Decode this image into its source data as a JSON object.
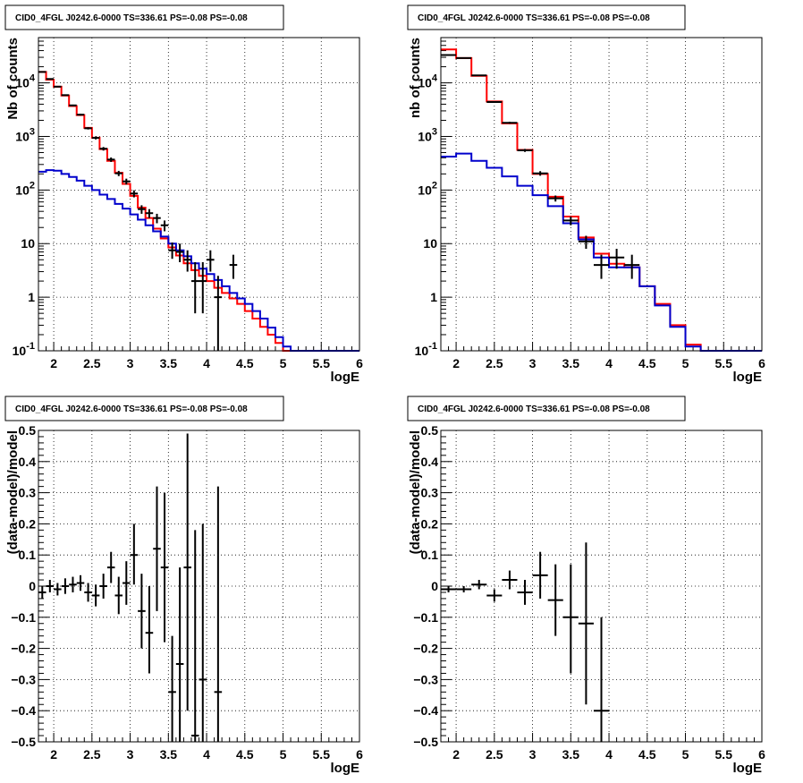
{
  "colors": {
    "model_total": "#ff0000",
    "model_component": "#0000cc",
    "data": "#000000",
    "grid": "#000000",
    "frame": "#000000"
  },
  "chart_data": [
    {
      "type": "line",
      "panel": "top-left",
      "title": "CID0_4FGL J0242.6-0000 TS=336.61 PS=-0.08 PS=-0.08",
      "xlabel": "logE",
      "ylabel": "Nb of counts",
      "xlim": [
        1.8,
        6.0
      ],
      "ylim": [
        0.1,
        70000
      ],
      "yscale": "log",
      "grid": true,
      "xticks": [
        "2",
        "2.5",
        "3",
        "3.5",
        "4",
        "4.5",
        "5",
        "5.5",
        "6"
      ],
      "yticks": [
        "10^-1",
        "1",
        "10",
        "10^2",
        "10^3",
        "10^4"
      ],
      "bin_edges": [
        1.8,
        1.9,
        2.0,
        2.1,
        2.2,
        2.3,
        2.4,
        2.5,
        2.6,
        2.7,
        2.8,
        2.9,
        3.0,
        3.1,
        3.2,
        3.3,
        3.4,
        3.5,
        3.6,
        3.7,
        3.8,
        3.9,
        4.0,
        4.1,
        4.2,
        4.3,
        4.4,
        4.5,
        4.6,
        4.7,
        4.8,
        4.9,
        5.0,
        5.1,
        5.2,
        5.3,
        5.4,
        5.5,
        5.6,
        5.7,
        5.8,
        5.9,
        6.0
      ],
      "series": [
        {
          "color": "#ff0000",
          "style": "step",
          "values": [
            16000,
            11500,
            8500,
            5800,
            3700,
            2500,
            1450,
            950,
            580,
            350,
            210,
            130,
            78,
            47,
            30,
            19,
            12.5,
            8.5,
            6,
            4.3,
            3.2,
            2.5,
            2.0,
            1.5,
            1.2,
            0.95,
            0.75,
            0.55,
            0.4,
            0.28,
            0.2,
            0.14,
            0.1,
            0.1,
            0.1,
            0.1,
            0.1,
            0.1,
            0.1,
            0.1,
            0.1,
            0.1
          ]
        },
        {
          "color": "#0000cc",
          "style": "step",
          "values": [
            220,
            235,
            230,
            200,
            175,
            150,
            120,
            100,
            82,
            68,
            55,
            45,
            35,
            28,
            22,
            17,
            13.5,
            10,
            7.5,
            5.8,
            4.3,
            3.4,
            2.7,
            2.1,
            1.6,
            1.2,
            0.95,
            0.75,
            0.55,
            0.4,
            0.27,
            0.18,
            0.12,
            0.1,
            0.1,
            0.1,
            0.1,
            0.1,
            0.1,
            0.1,
            0.1,
            0.1
          ]
        }
      ],
      "points": [
        {
          "x": 1.85,
          "y": 16000,
          "ylo": 15700,
          "yhi": 16300
        },
        {
          "x": 1.95,
          "y": 11800,
          "ylo": 11550,
          "yhi": 12050
        },
        {
          "x": 2.05,
          "y": 8500,
          "ylo": 8300,
          "yhi": 8700
        },
        {
          "x": 2.15,
          "y": 5900,
          "ylo": 5750,
          "yhi": 6050
        },
        {
          "x": 2.25,
          "y": 3800,
          "ylo": 3680,
          "yhi": 3920
        },
        {
          "x": 2.35,
          "y": 2550,
          "ylo": 2450,
          "yhi": 2650
        },
        {
          "x": 2.45,
          "y": 1420,
          "ylo": 1350,
          "yhi": 1490
        },
        {
          "x": 2.55,
          "y": 940,
          "ylo": 880,
          "yhi": 1000
        },
        {
          "x": 2.65,
          "y": 590,
          "ylo": 545,
          "yhi": 635
        },
        {
          "x": 2.75,
          "y": 370,
          "ylo": 335,
          "yhi": 405
        },
        {
          "x": 2.85,
          "y": 205,
          "ylo": 182,
          "yhi": 228
        },
        {
          "x": 2.95,
          "y": 145,
          "ylo": 127,
          "yhi": 163
        },
        {
          "x": 3.05,
          "y": 86,
          "ylo": 73,
          "yhi": 99
        },
        {
          "x": 3.15,
          "y": 44,
          "ylo": 36,
          "yhi": 52
        },
        {
          "x": 3.25,
          "y": 37,
          "ylo": 30,
          "yhi": 44
        },
        {
          "x": 3.35,
          "y": 30,
          "ylo": 24,
          "yhi": 36
        },
        {
          "x": 3.45,
          "y": 22,
          "ylo": 17,
          "yhi": 27
        },
        {
          "x": 3.55,
          "y": 7.5,
          "ylo": 5.2,
          "yhi": 10.5
        },
        {
          "x": 3.65,
          "y": 7,
          "ylo": 4.5,
          "yhi": 10
        },
        {
          "x": 3.75,
          "y": 5,
          "ylo": 3,
          "yhi": 7.5
        },
        {
          "x": 3.85,
          "y": 2,
          "ylo": 0.5,
          "yhi": 4.5
        },
        {
          "x": 3.95,
          "y": 2,
          "ylo": 0.5,
          "yhi": 4.5
        },
        {
          "x": 4.05,
          "y": 5,
          "ylo": 3,
          "yhi": 7.5
        },
        {
          "x": 4.15,
          "y": 1,
          "ylo": 0.1,
          "yhi": 2.5
        },
        {
          "x": 4.35,
          "y": 4,
          "ylo": 2.2,
          "yhi": 6.2
        }
      ]
    },
    {
      "type": "line",
      "panel": "top-right",
      "title": "CID0_4FGL J0242.6-0000 TS=336.61 PS=-0.08 PS=-0.08",
      "xlabel": "logE",
      "ylabel": "nb of counts",
      "xlim": [
        1.8,
        6.0
      ],
      "ylim": [
        0.1,
        70000
      ],
      "yscale": "log",
      "grid": true,
      "xticks": [
        "2",
        "2.5",
        "3",
        "3.5",
        "4",
        "4.5",
        "5",
        "5.5",
        "6"
      ],
      "yticks": [
        "10^-1",
        "1",
        "10",
        "10^2",
        "10^3",
        "10^4"
      ],
      "bin_edges": [
        1.8,
        2.0,
        2.2,
        2.4,
        2.6,
        2.8,
        3.0,
        3.2,
        3.4,
        3.6,
        3.8,
        4.0,
        4.2,
        4.4,
        4.6,
        4.8,
        5.0,
        5.2,
        5.4,
        5.6,
        5.8,
        6.0
      ],
      "series": [
        {
          "color": "#ff0000",
          "style": "step",
          "values": [
            42000,
            29000,
            13500,
            4500,
            1750,
            560,
            200,
            75,
            32,
            13,
            6.5,
            4.2,
            3.6,
            1.6,
            0.75,
            0.3,
            0.13,
            0.1,
            0.1,
            0.1,
            0.1
          ]
        },
        {
          "color": "#0000cc",
          "style": "step",
          "values": [
            420,
            480,
            350,
            260,
            180,
            120,
            80,
            50,
            24,
            12,
            5.5,
            3.6,
            3.6,
            1.6,
            0.7,
            0.28,
            0.12,
            0.1,
            0.1,
            0.1,
            0.1
          ]
        }
      ],
      "points": [
        {
          "x": 1.9,
          "y": 33000,
          "ylo": 32600,
          "yhi": 33400
        },
        {
          "x": 2.1,
          "y": 29000,
          "ylo": 28600,
          "yhi": 29400
        },
        {
          "x": 2.3,
          "y": 13800,
          "ylo": 13500,
          "yhi": 14100
        },
        {
          "x": 2.5,
          "y": 4400,
          "ylo": 4250,
          "yhi": 4550
        },
        {
          "x": 2.7,
          "y": 1800,
          "ylo": 1720,
          "yhi": 1880
        },
        {
          "x": 2.9,
          "y": 550,
          "ylo": 515,
          "yhi": 585
        },
        {
          "x": 3.1,
          "y": 205,
          "ylo": 185,
          "yhi": 225
        },
        {
          "x": 3.3,
          "y": 70,
          "ylo": 61,
          "yhi": 79
        },
        {
          "x": 3.5,
          "y": 27,
          "ylo": 22,
          "yhi": 32
        },
        {
          "x": 3.7,
          "y": 11,
          "ylo": 8,
          "yhi": 14
        },
        {
          "x": 3.9,
          "y": 4,
          "ylo": 2.2,
          "yhi": 6.2
        },
        {
          "x": 4.1,
          "y": 5.5,
          "ylo": 3.4,
          "yhi": 8
        },
        {
          "x": 4.3,
          "y": 4,
          "ylo": 2.2,
          "yhi": 6.2
        }
      ]
    },
    {
      "type": "scatter",
      "panel": "bottom-left",
      "title": "CID0_4FGL J0242.6-0000 TS=336.61 PS=-0.08 PS=-0.08",
      "xlabel": "logE",
      "ylabel": "(data-model)/model",
      "xlim": [
        1.8,
        6.0
      ],
      "ylim": [
        -0.5,
        0.5
      ],
      "grid": true,
      "xticks": [
        "2",
        "2.5",
        "3",
        "3.5",
        "4",
        "4.5",
        "5",
        "5.5",
        "6"
      ],
      "yticks": [
        "−0.5",
        "−0.4",
        "−0.3",
        "−0.2",
        "−0.1",
        "0",
        "0.1",
        "0.2",
        "0.3",
        "0.4",
        "0.5"
      ],
      "xerr": 0.05,
      "points": [
        {
          "x": 1.85,
          "y": -0.02,
          "ylo": -0.04,
          "yhi": 0.0
        },
        {
          "x": 1.95,
          "y": 0.0,
          "ylo": -0.02,
          "yhi": 0.02
        },
        {
          "x": 2.05,
          "y": -0.01,
          "ylo": -0.03,
          "yhi": 0.01
        },
        {
          "x": 2.15,
          "y": 0.0,
          "ylo": -0.025,
          "yhi": 0.025
        },
        {
          "x": 2.25,
          "y": 0.005,
          "ylo": -0.02,
          "yhi": 0.03
        },
        {
          "x": 2.35,
          "y": 0.01,
          "ylo": -0.015,
          "yhi": 0.035
        },
        {
          "x": 2.45,
          "y": -0.02,
          "ylo": -0.05,
          "yhi": 0.01
        },
        {
          "x": 2.55,
          "y": -0.03,
          "ylo": -0.065,
          "yhi": 0.005
        },
        {
          "x": 2.65,
          "y": 0.0,
          "ylo": -0.04,
          "yhi": 0.04
        },
        {
          "x": 2.75,
          "y": 0.06,
          "ylo": 0.01,
          "yhi": 0.11
        },
        {
          "x": 2.85,
          "y": -0.03,
          "ylo": -0.09,
          "yhi": 0.03
        },
        {
          "x": 2.95,
          "y": 0.01,
          "ylo": -0.06,
          "yhi": 0.08
        },
        {
          "x": 3.05,
          "y": 0.1,
          "ylo": 0.005,
          "yhi": 0.2
        },
        {
          "x": 3.15,
          "y": -0.08,
          "ylo": -0.2,
          "yhi": 0.04
        },
        {
          "x": 3.25,
          "y": -0.15,
          "ylo": -0.28,
          "yhi": 0.0
        },
        {
          "x": 3.35,
          "y": 0.12,
          "ylo": -0.08,
          "yhi": 0.32
        },
        {
          "x": 3.45,
          "y": 0.06,
          "ylo": -0.18,
          "yhi": 0.3
        },
        {
          "x": 3.55,
          "y": -0.34,
          "ylo": -0.5,
          "yhi": -0.16
        },
        {
          "x": 3.65,
          "y": -0.25,
          "ylo": -0.5,
          "yhi": 0.06
        },
        {
          "x": 3.75,
          "y": 0.06,
          "ylo": -0.4,
          "yhi": 0.49
        },
        {
          "x": 3.85,
          "y": -0.48,
          "ylo": -0.5,
          "yhi": 0.18
        },
        {
          "x": 3.95,
          "y": -0.3,
          "ylo": -0.5,
          "yhi": 0.2
        },
        {
          "x": 4.15,
          "y": -0.34,
          "ylo": -0.5,
          "yhi": 0.32
        }
      ]
    },
    {
      "type": "scatter",
      "panel": "bottom-right",
      "title": "CID0_4FGL J0242.6-0000 TS=336.61 PS=-0.08 PS=-0.08",
      "xlabel": "logE",
      "ylabel": "(data-model)/model",
      "xlim": [
        1.8,
        6.0
      ],
      "ylim": [
        -0.5,
        0.5
      ],
      "grid": true,
      "xticks": [
        "2",
        "2.5",
        "3",
        "3.5",
        "4",
        "4.5",
        "5",
        "5.5",
        "6"
      ],
      "yticks": [
        "−0.5",
        "−0.4",
        "−0.3",
        "−0.2",
        "−0.1",
        "0",
        "0.1",
        "0.2",
        "0.3",
        "0.4",
        "0.5"
      ],
      "xerr": 0.1,
      "points": [
        {
          "x": 1.9,
          "y": -0.01,
          "ylo": -0.02,
          "yhi": 0.0
        },
        {
          "x": 2.1,
          "y": -0.01,
          "ylo": -0.02,
          "yhi": 0.0
        },
        {
          "x": 2.3,
          "y": 0.005,
          "ylo": -0.01,
          "yhi": 0.02
        },
        {
          "x": 2.5,
          "y": -0.03,
          "ylo": -0.05,
          "yhi": -0.01
        },
        {
          "x": 2.7,
          "y": 0.02,
          "ylo": -0.01,
          "yhi": 0.05
        },
        {
          "x": 2.9,
          "y": -0.02,
          "ylo": -0.06,
          "yhi": 0.02
        },
        {
          "x": 3.1,
          "y": 0.035,
          "ylo": -0.04,
          "yhi": 0.11
        },
        {
          "x": 3.3,
          "y": -0.045,
          "ylo": -0.16,
          "yhi": 0.07
        },
        {
          "x": 3.5,
          "y": -0.1,
          "ylo": -0.28,
          "yhi": 0.07
        },
        {
          "x": 3.7,
          "y": -0.12,
          "ylo": -0.38,
          "yhi": 0.14
        },
        {
          "x": 3.9,
          "y": -0.4,
          "ylo": -0.5,
          "yhi": -0.1
        }
      ]
    }
  ]
}
